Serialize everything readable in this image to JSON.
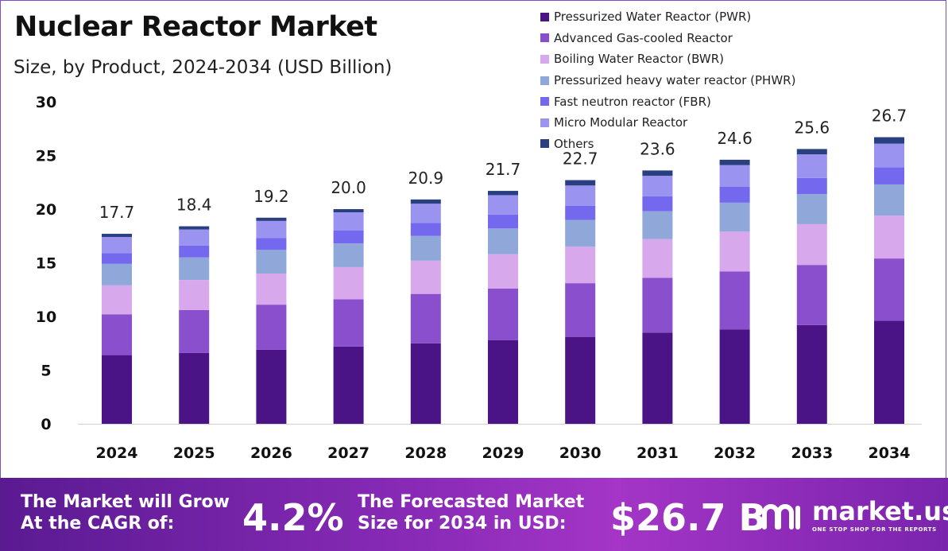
{
  "header": {
    "title": "Nuclear Reactor Market",
    "subtitle": "Size, by Product, 2024-2034 (USD Billion)"
  },
  "chart_data": {
    "type": "bar",
    "stacked": true,
    "title": "Nuclear Reactor Market",
    "subtitle": "Size, by Product, 2024-2034 (USD Billion)",
    "xlabel": "",
    "ylabel": "",
    "ylim": [
      0,
      30
    ],
    "yticks": [
      0,
      5,
      10,
      15,
      20,
      25,
      30
    ],
    "grid": false,
    "legend_position": "top-right",
    "categories": [
      "2024",
      "2025",
      "2026",
      "2027",
      "2028",
      "2029",
      "2030",
      "2031",
      "2032",
      "2033",
      "2034"
    ],
    "totals": [
      17.7,
      18.4,
      19.2,
      20.0,
      20.9,
      21.7,
      22.7,
      23.6,
      24.6,
      25.6,
      26.7
    ],
    "total_labels": [
      "17.7",
      "18.4",
      "19.2",
      "20.0",
      "20.9",
      "21.7",
      "22.7",
      "23.6",
      "24.6",
      "25.6",
      "26.7"
    ],
    "series": [
      {
        "name": "Pressurized Water Reactor (PWR)",
        "color": "#4b1486",
        "values": [
          6.4,
          6.6,
          6.9,
          7.2,
          7.5,
          7.8,
          8.1,
          8.5,
          8.8,
          9.2,
          9.6
        ]
      },
      {
        "name": "Advanced Gas-cooled Reactor",
        "color": "#8a4fcc",
        "values": [
          3.8,
          4.0,
          4.2,
          4.4,
          4.6,
          4.8,
          5.0,
          5.1,
          5.4,
          5.6,
          5.8
        ]
      },
      {
        "name": "Boiling Water Reactor (BWR)",
        "color": "#d8a8ec",
        "values": [
          2.7,
          2.8,
          2.9,
          3.0,
          3.1,
          3.2,
          3.4,
          3.6,
          3.7,
          3.8,
          4.0
        ]
      },
      {
        "name": "Pressurized heavy water reactor (PHWR)",
        "color": "#8fa7d9",
        "values": [
          2.0,
          2.1,
          2.2,
          2.2,
          2.3,
          2.4,
          2.5,
          2.6,
          2.7,
          2.8,
          2.9
        ]
      },
      {
        "name": "Fast neutron reactor (FBR)",
        "color": "#7368ee",
        "values": [
          1.0,
          1.1,
          1.1,
          1.2,
          1.2,
          1.3,
          1.3,
          1.4,
          1.5,
          1.5,
          1.6
        ]
      },
      {
        "name": "Micro Modular Reactor",
        "color": "#9b93f0",
        "values": [
          1.5,
          1.5,
          1.6,
          1.7,
          1.8,
          1.8,
          1.9,
          1.9,
          2.0,
          2.2,
          2.2
        ]
      },
      {
        "name": "Others",
        "color": "#2a3f80",
        "values": [
          0.3,
          0.3,
          0.3,
          0.3,
          0.4,
          0.4,
          0.5,
          0.5,
          0.5,
          0.5,
          0.6
        ]
      }
    ]
  },
  "banner": {
    "cagr_text_line1": "The Market will Grow",
    "cagr_text_line2": "At the CAGR of:",
    "cagr_value": "4.2%",
    "forecast_text_line1": "The Forecasted Market",
    "forecast_text_line2": "Size for 2034 in USD:",
    "forecast_value": "$26.7 B",
    "brand_name": "market.us",
    "brand_tagline": "ONE STOP SHOP FOR THE REPORTS"
  }
}
